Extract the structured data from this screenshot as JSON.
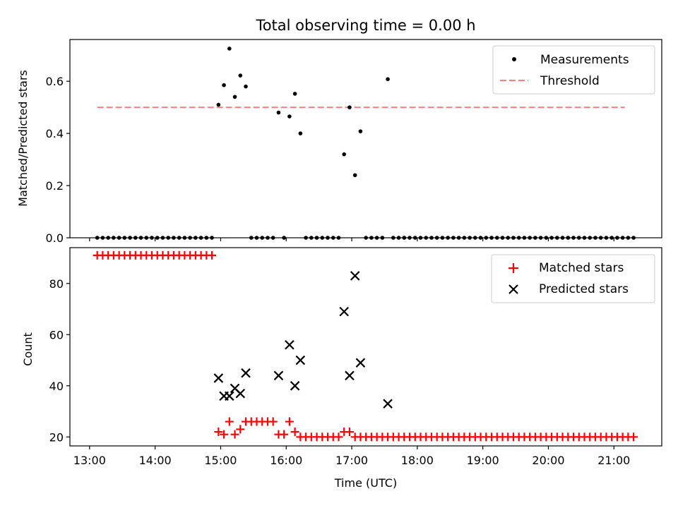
{
  "chart_data": [
    {
      "type": "scatter",
      "title": "Total observing time = 0.00 h",
      "xlabel": "",
      "ylabel": "Matched/Predicted stars",
      "ylim": [
        0.0,
        0.76
      ],
      "yticks": [
        "0.0",
        "0.2",
        "0.4",
        "0.6"
      ],
      "xlim_hours": [
        12.7,
        21.73
      ],
      "legend_position": "top-right",
      "series": [
        {
          "name": "Measurements",
          "marker": "dot",
          "color": "#000000",
          "x": [
            "13:07",
            "13:12",
            "13:17",
            "13:22",
            "13:27",
            "13:32",
            "13:37",
            "13:42",
            "13:47",
            "13:52",
            "13:57",
            "14:02",
            "14:07",
            "14:12",
            "14:17",
            "14:22",
            "14:27",
            "14:32",
            "14:37",
            "14:42",
            "14:47",
            "14:52",
            "14:58",
            "15:03",
            "15:08",
            "15:13",
            "15:18",
            "15:23",
            "15:28",
            "15:33",
            "15:38",
            "15:43",
            "15:48",
            "15:53",
            "15:58",
            "16:03",
            "16:08",
            "16:13",
            "16:18",
            "16:23",
            "16:28",
            "16:33",
            "16:38",
            "16:43",
            "16:48",
            "16:53",
            "16:58",
            "17:03",
            "17:08",
            "17:13",
            "17:18",
            "17:23",
            "17:28",
            "17:33",
            "17:38",
            "17:43",
            "17:48",
            "17:53",
            "17:58",
            "18:03",
            "18:08",
            "18:13",
            "18:18",
            "18:23",
            "18:28",
            "18:33",
            "18:38",
            "18:43",
            "18:48",
            "18:53",
            "18:58",
            "19:03",
            "19:08",
            "19:13",
            "19:18",
            "19:23",
            "19:28",
            "19:33",
            "19:38",
            "19:43",
            "19:48",
            "19:53",
            "19:58",
            "20:03",
            "20:08",
            "20:13",
            "20:18",
            "20:23",
            "20:28",
            "20:33",
            "20:38",
            "20:43",
            "20:48",
            "20:53",
            "20:58",
            "21:03",
            "21:08",
            "21:13",
            "21:18"
          ],
          "y": [
            0,
            0,
            0,
            0,
            0,
            0,
            0,
            0,
            0,
            0,
            0,
            0,
            0,
            0,
            0,
            0,
            0,
            0,
            0,
            0,
            0,
            0,
            0.51,
            0.585,
            0.725,
            0.54,
            0.622,
            0.58,
            0,
            0,
            0,
            0,
            0,
            0.48,
            0,
            0.465,
            0.552,
            0.4,
            0,
            0,
            0,
            0,
            0,
            0,
            0,
            0.32,
            0.5,
            0.24,
            0.408,
            0,
            0,
            0,
            0,
            0.608,
            0,
            0,
            0,
            0,
            0,
            0,
            0,
            0,
            0,
            0,
            0,
            0,
            0,
            0,
            0,
            0,
            0,
            0,
            0,
            0,
            0,
            0,
            0,
            0,
            0,
            0,
            0,
            0,
            0,
            0,
            0,
            0,
            0,
            0,
            0,
            0,
            0,
            0,
            0,
            0,
            0,
            0,
            0,
            0,
            0
          ]
        },
        {
          "name": "Threshold",
          "type": "line",
          "style": "dashed",
          "color": "#ff7f7f",
          "x": [
            "13:07",
            "21:10"
          ],
          "y": [
            0.5,
            0.5
          ]
        }
      ]
    },
    {
      "type": "scatter",
      "title": "",
      "xlabel": "Time (UTC)",
      "ylabel": "Count",
      "ylim": [
        16.5,
        94
      ],
      "yticks": [
        "20",
        "40",
        "60",
        "80"
      ],
      "xlim_hours": [
        12.7,
        21.73
      ],
      "xticks": [
        "13:00",
        "14:00",
        "15:00",
        "16:00",
        "17:00",
        "18:00",
        "19:00",
        "20:00",
        "21:00"
      ],
      "legend_position": "top-right",
      "series": [
        {
          "name": "Matched stars",
          "marker": "plus",
          "color": "#ff0000",
          "x": [
            "13:07",
            "13:12",
            "13:17",
            "13:22",
            "13:27",
            "13:32",
            "13:37",
            "13:42",
            "13:47",
            "13:52",
            "13:57",
            "14:02",
            "14:07",
            "14:12",
            "14:17",
            "14:22",
            "14:27",
            "14:32",
            "14:37",
            "14:42",
            "14:47",
            "14:52",
            "14:58",
            "15:03",
            "15:08",
            "15:13",
            "15:18",
            "15:23",
            "15:28",
            "15:33",
            "15:38",
            "15:43",
            "15:48",
            "15:53",
            "15:58",
            "16:03",
            "16:08",
            "16:13",
            "16:18",
            "16:23",
            "16:28",
            "16:33",
            "16:38",
            "16:43",
            "16:48",
            "16:53",
            "16:58",
            "17:03",
            "17:08",
            "17:13",
            "17:18",
            "17:23",
            "17:28",
            "17:33",
            "17:38",
            "17:43",
            "17:48",
            "17:53",
            "17:58",
            "18:03",
            "18:08",
            "18:13",
            "18:18",
            "18:23",
            "18:28",
            "18:33",
            "18:38",
            "18:43",
            "18:48",
            "18:53",
            "18:58",
            "19:03",
            "19:08",
            "19:13",
            "19:18",
            "19:23",
            "19:28",
            "19:33",
            "19:38",
            "19:43",
            "19:48",
            "19:53",
            "19:58",
            "20:03",
            "20:08",
            "20:13",
            "20:18",
            "20:23",
            "20:28",
            "20:33",
            "20:38",
            "20:43",
            "20:48",
            "20:53",
            "20:58",
            "21:03",
            "21:08",
            "21:13",
            "21:18"
          ],
          "y": [
            91,
            91,
            91,
            91,
            91,
            91,
            91,
            91,
            91,
            91,
            91,
            91,
            91,
            91,
            91,
            91,
            91,
            91,
            91,
            91,
            91,
            91,
            22,
            21,
            26,
            21,
            23,
            26,
            26,
            26,
            26,
            26,
            26,
            21,
            21,
            26,
            22,
            20,
            20,
            20,
            20,
            20,
            20,
            20,
            20,
            22,
            22,
            20,
            20,
            20,
            20,
            20,
            20,
            20,
            20,
            20,
            20,
            20,
            20,
            20,
            20,
            20,
            20,
            20,
            20,
            20,
            20,
            20,
            20,
            20,
            20,
            20,
            20,
            20,
            20,
            20,
            20,
            20,
            20,
            20,
            20,
            20,
            20,
            20,
            20,
            20,
            20,
            20,
            20,
            20,
            20,
            20,
            20,
            20,
            20,
            20,
            20,
            20,
            20
          ]
        },
        {
          "name": "Predicted stars",
          "marker": "x",
          "color": "#000000",
          "x": [
            "14:58",
            "15:03",
            "15:08",
            "15:13",
            "15:18",
            "15:23",
            "15:53",
            "16:03",
            "16:08",
            "16:13",
            "16:53",
            "16:58",
            "17:03",
            "17:08",
            "17:33"
          ],
          "y": [
            43,
            36,
            36,
            39,
            37,
            45,
            44,
            56,
            40,
            50,
            69,
            44,
            83,
            49,
            33
          ]
        }
      ]
    }
  ]
}
